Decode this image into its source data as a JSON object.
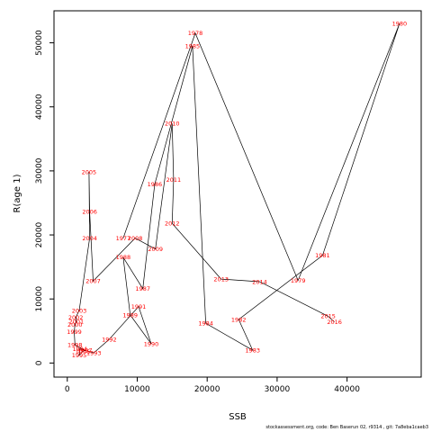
{
  "chart_data": {
    "type": "line",
    "xlabel": "SSB",
    "ylabel": "R(age 1)",
    "xlim": [
      -1900,
      50600
    ],
    "ylim": [
      -2200,
      55000
    ],
    "xticks": [
      0,
      10000,
      20000,
      30000,
      40000
    ],
    "yticks": [
      0,
      10000,
      20000,
      30000,
      40000,
      50000
    ],
    "line_color": "#000000",
    "label_color": "#ff0000",
    "points": [
      {
        "year": "1977",
        "x": 8000,
        "y": 19500
      },
      {
        "year": "1978",
        "x": 18300,
        "y": 51500
      },
      {
        "year": "1979",
        "x": 33000,
        "y": 12900
      },
      {
        "year": "1980",
        "x": 47500,
        "y": 53000
      },
      {
        "year": "1981",
        "x": 36500,
        "y": 16800
      },
      {
        "year": "1982",
        "x": 24500,
        "y": 6800
      },
      {
        "year": "1983",
        "x": 26500,
        "y": 2000
      },
      {
        "year": "1984",
        "x": 19800,
        "y": 6200
      },
      {
        "year": "1985",
        "x": 17900,
        "y": 49500
      },
      {
        "year": "1986",
        "x": 12500,
        "y": 27900
      },
      {
        "year": "1987",
        "x": 10800,
        "y": 11600
      },
      {
        "year": "1988",
        "x": 8000,
        "y": 16500
      },
      {
        "year": "1989",
        "x": 9000,
        "y": 7500
      },
      {
        "year": "1990",
        "x": 12000,
        "y": 3000
      },
      {
        "year": "1991",
        "x": 10200,
        "y": 8800
      },
      {
        "year": "1992",
        "x": 6000,
        "y": 3700
      },
      {
        "year": "1993",
        "x": 3800,
        "y": 1600
      },
      {
        "year": "1994",
        "x": 1800,
        "y": 2200
      },
      {
        "year": "1995",
        "x": 1700,
        "y": 1200
      },
      {
        "year": "1996",
        "x": 2200,
        "y": 1800
      },
      {
        "year": "1997",
        "x": 2500,
        "y": 2000
      },
      {
        "year": "1998",
        "x": 1100,
        "y": 2800
      },
      {
        "year": "1999",
        "x": 1000,
        "y": 4900
      },
      {
        "year": "2000",
        "x": 1100,
        "y": 6000
      },
      {
        "year": "2001",
        "x": 1300,
        "y": 6500
      },
      {
        "year": "2002",
        "x": 1200,
        "y": 7100
      },
      {
        "year": "2003",
        "x": 1700,
        "y": 8200
      },
      {
        "year": "2004",
        "x": 3200,
        "y": 19500
      },
      {
        "year": "2005",
        "x": 3100,
        "y": 29800
      },
      {
        "year": "2006",
        "x": 3200,
        "y": 23600
      },
      {
        "year": "2007",
        "x": 3700,
        "y": 12800
      },
      {
        "year": "2008",
        "x": 9700,
        "y": 19500
      },
      {
        "year": "2009",
        "x": 12600,
        "y": 17800
      },
      {
        "year": "2010",
        "x": 15000,
        "y": 37400
      },
      {
        "year": "2011",
        "x": 15200,
        "y": 28600
      },
      {
        "year": "2012",
        "x": 15000,
        "y": 21800
      },
      {
        "year": "2013",
        "x": 22000,
        "y": 13100
      },
      {
        "year": "2014",
        "x": 27500,
        "y": 12700
      },
      {
        "year": "2015",
        "x": 37300,
        "y": 7300
      },
      {
        "year": "2016",
        "x": 38200,
        "y": 6400
      }
    ]
  },
  "footer": {
    "text": "stockassessment.org, code: Ben Baserun 02, r9314 , git: 7a8eba1caeb3"
  }
}
